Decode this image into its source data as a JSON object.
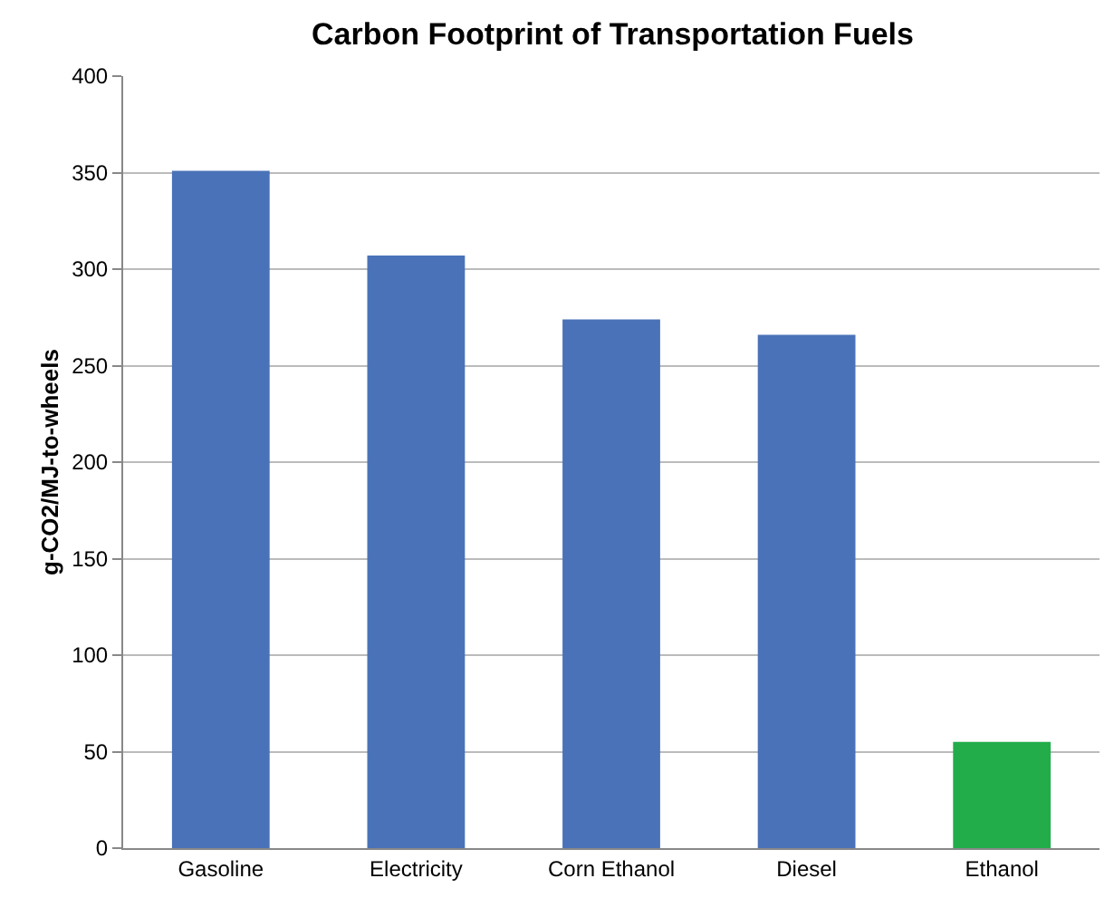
{
  "chart_data": {
    "type": "bar",
    "title": "Carbon Footprint of Transportation Fuels",
    "ylabel": "g-CO2/MJ-to-wheels",
    "categories": [
      "Gasoline",
      "Electricity",
      "Corn Ethanol",
      "Diesel",
      "Ethanol"
    ],
    "values": [
      351,
      307,
      274,
      266,
      55
    ],
    "colors": [
      "#4a72b8",
      "#4a72b8",
      "#4a72b8",
      "#4a72b8",
      "#22ad4a"
    ],
    "ylim": [
      0,
      400
    ],
    "yticks": [
      0,
      50,
      100,
      150,
      200,
      250,
      300,
      350,
      400
    ],
    "grid": "y"
  }
}
